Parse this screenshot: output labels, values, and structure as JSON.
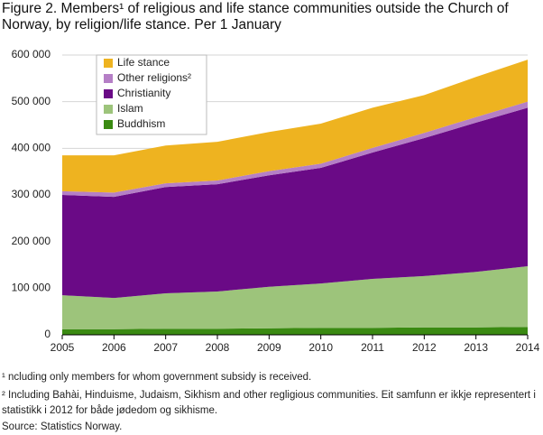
{
  "chart_data": {
    "type": "stacked-area",
    "title": "Figure  2. Members¹ of religious and life stance communities outside the Church of Norway, by religion/life stance. Per 1 January",
    "x": [
      2005,
      2006,
      2007,
      2008,
      2009,
      2010,
      2011,
      2012,
      2013,
      2014
    ],
    "xlim": [
      2005,
      2014
    ],
    "xticks": [
      2005,
      2006,
      2007,
      2008,
      2009,
      2010,
      2011,
      2012,
      2013,
      2014
    ],
    "ylim": [
      0,
      600000
    ],
    "yticks": [
      {
        "value": 0,
        "label": "0"
      },
      {
        "value": 100000,
        "label": "100 000"
      },
      {
        "value": 200000,
        "label": "200 000"
      },
      {
        "value": 300000,
        "label": "300 000"
      },
      {
        "value": 400000,
        "label": "400 000"
      },
      {
        "value": 500000,
        "label": "500 000"
      },
      {
        "value": 600000,
        "label": "600 000"
      }
    ],
    "grid": true,
    "legend": "top-left",
    "series": [
      {
        "name": "Buddhism",
        "color": "#3a8a12",
        "values": [
          12000,
          12000,
          13000,
          13000,
          14000,
          15000,
          15000,
          16000,
          16000,
          17000
        ]
      },
      {
        "name": "Islam",
        "color": "#9dc47b",
        "values": [
          73000,
          67000,
          76000,
          80000,
          89000,
          95000,
          105000,
          110000,
          119000,
          130000
        ]
      },
      {
        "name": "Christianity",
        "color": "#6a0a86",
        "values": [
          215000,
          217000,
          228000,
          230000,
          239000,
          248000,
          271000,
          296000,
          320000,
          340000
        ]
      },
      {
        "name": "Other religions²",
        "color": "#b57fc6",
        "values": [
          8000,
          9000,
          8000,
          8000,
          9000,
          9000,
          10000,
          11000,
          12000,
          13000
        ]
      },
      {
        "name": "Life stance",
        "color": "#eeb320",
        "values": [
          77000,
          80000,
          81000,
          83000,
          84000,
          86000,
          86000,
          81000,
          86000,
          90000
        ]
      }
    ],
    "footnotes": [
      "¹ ncluding only members for whom government subsidy is received.",
      "² Including Bahài, Hinduisme, Judaism, Sikhism and other regligious communities. Eit samfunn er ikkje representert i statistikk i 2012 for både jødedom og sikhisme."
    ],
    "source": "Source: Statistics Norway."
  }
}
